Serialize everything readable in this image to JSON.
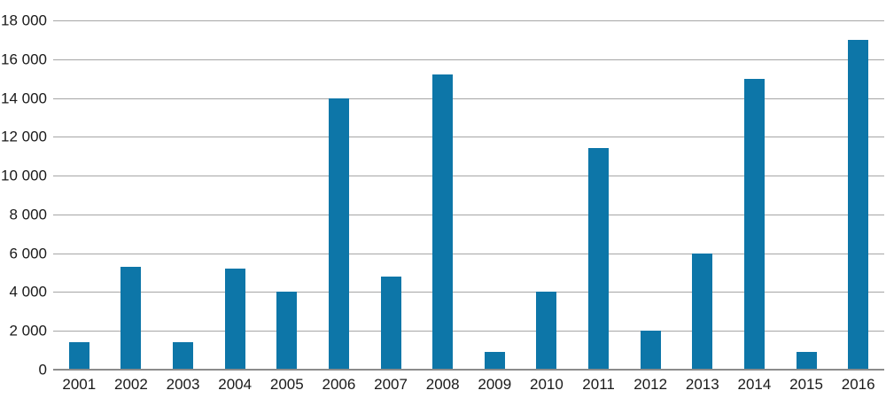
{
  "chart_data": {
    "type": "bar",
    "title": "",
    "xlabel": "",
    "ylabel": "",
    "categories": [
      "2001",
      "2002",
      "2003",
      "2004",
      "2005",
      "2006",
      "2007",
      "2008",
      "2009",
      "2010",
      "2011",
      "2012",
      "2013",
      "2014",
      "2015",
      "2016"
    ],
    "values": [
      1400,
      5300,
      1400,
      5200,
      4000,
      14000,
      4800,
      15200,
      900,
      4000,
      11400,
      2000,
      6000,
      15000,
      900,
      17000
    ],
    "ylim": [
      0,
      18000
    ],
    "ytick_values": [
      0,
      2000,
      4000,
      6000,
      8000,
      10000,
      12000,
      14000,
      16000,
      18000
    ],
    "ytick_labels": [
      "0",
      "2 000",
      "4 000",
      "6 000",
      "8 000",
      "10 000",
      "12 000",
      "14 000",
      "16 000",
      "18 000"
    ],
    "grid": true,
    "legend": false,
    "colors": {
      "bar": "#0d76a8",
      "gridline": "#a6a6a6",
      "axis_line": "#8c8c8c",
      "text": "#1a1a1a"
    }
  }
}
